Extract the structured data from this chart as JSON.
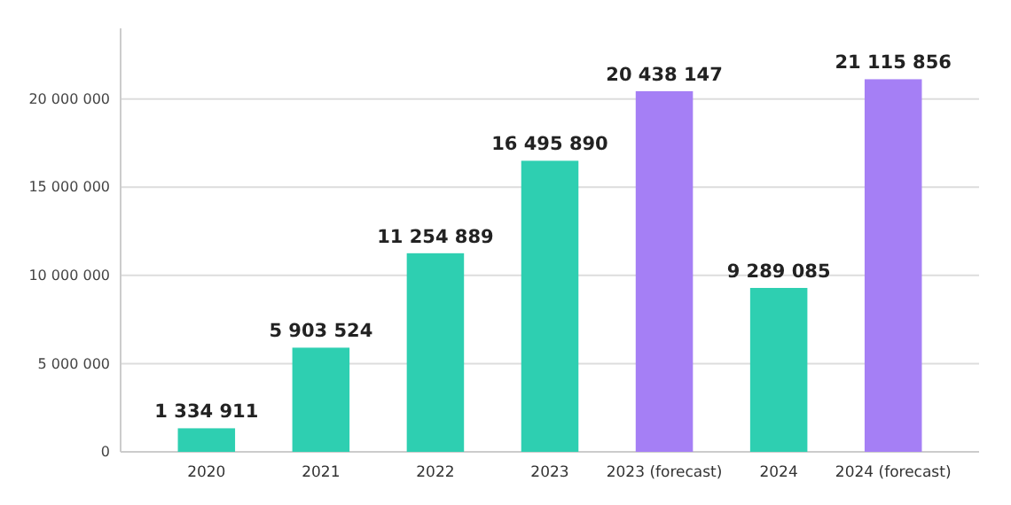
{
  "chart_data": {
    "type": "bar",
    "categories": [
      "2020",
      "2021",
      "2022",
      "2023",
      "2023 (forecast)",
      "2024",
      "2024 (forecast)"
    ],
    "values": [
      1334911,
      5903524,
      11254889,
      16495890,
      20438147,
      9289085,
      21115856
    ],
    "colors": [
      "#2ecfb1",
      "#2ecfb1",
      "#2ecfb1",
      "#2ecfb1",
      "#a57ff5",
      "#2ecfb1",
      "#a57ff5"
    ],
    "value_labels": [
      "1 334 911",
      "5 903 524",
      "11 254 889",
      "16 495 890",
      "20 438 147",
      "9 289 085",
      "21 115 856"
    ],
    "ylim": [
      0,
      24000000
    ],
    "yticks": [
      {
        "value": 0,
        "label": "0"
      },
      {
        "value": 5000000,
        "label": "5 000 000"
      },
      {
        "value": 10000000,
        "label": "10 000 000"
      },
      {
        "value": 15000000,
        "label": "15 000 000"
      },
      {
        "value": 20000000,
        "label": "20 000 000"
      }
    ],
    "grid": "y"
  }
}
